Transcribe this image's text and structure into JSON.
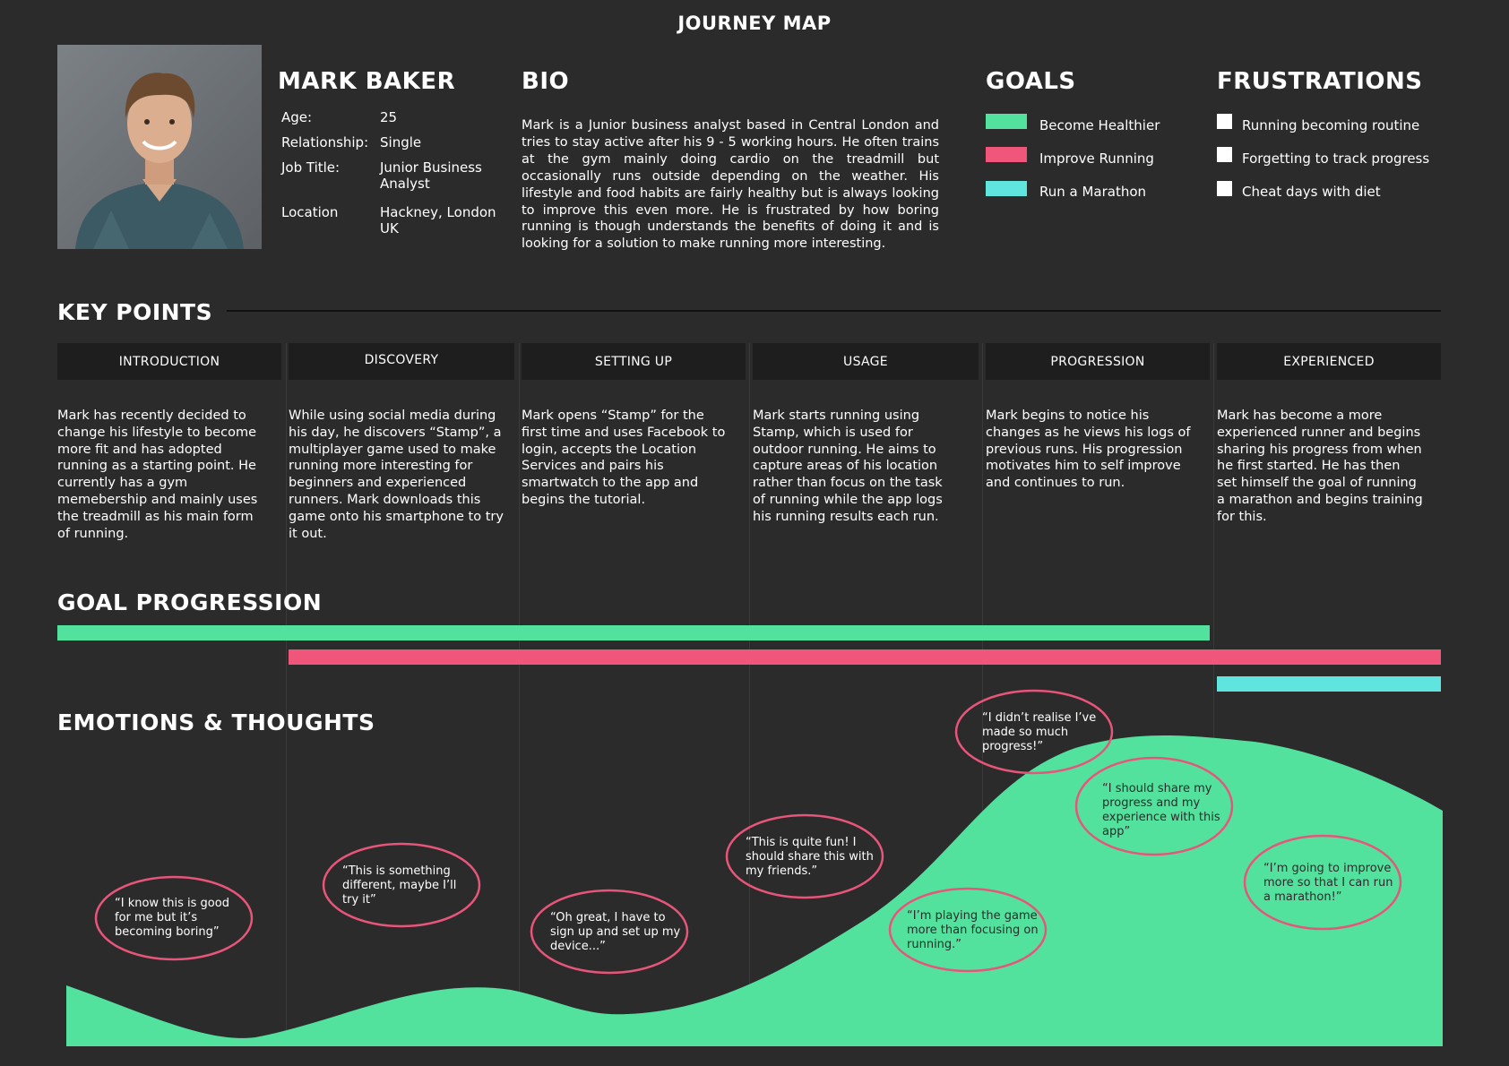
{
  "title": "JOURNEY MAP",
  "persona": {
    "name": "MARK BAKER",
    "fields": [
      {
        "label": "Age:",
        "value": "25"
      },
      {
        "label": "Relationship:",
        "value": "Single"
      },
      {
        "label": "Job Title:",
        "value": "Junior Business Analyst"
      },
      {
        "label": "Location",
        "value": "Hackney, London UK"
      }
    ]
  },
  "bio": {
    "heading": "BIO",
    "text": "Mark is a Junior business analyst based in Central London and tries to stay active after his 9 - 5 working hours. He often trains at the gym mainly doing cardio on the treadmill but occasionally runs outside depending on the weather. His lifestyle and food habits are fairly healthy but is always looking to improve this even more. He is frustrated by how boring running is though understands the benefits of doing it and is looking for a solution to make running more interesting."
  },
  "goals": {
    "heading": "GOALS",
    "items": [
      {
        "label": "Become Healthier",
        "color": "#52e29e"
      },
      {
        "label": "Improve Running",
        "color": "#f0567a"
      },
      {
        "label": "Run a Marathon",
        "color": "#5fe5dd"
      }
    ]
  },
  "frustrations": {
    "heading": "FRUSTRATIONS",
    "items": [
      {
        "label": "Running becoming routine"
      },
      {
        "label": "Forgetting to track progress"
      },
      {
        "label": "Cheat days with diet"
      }
    ]
  },
  "key_points": {
    "heading": "KEY POINTS",
    "stages": [
      {
        "label": "INTRODUCTION",
        "text": "Mark has recently decided to change his lifestyle to become more fit and has adopted running as a starting point. He currently has a gym memebership and mainly uses the treadmill as his main form of running."
      },
      {
        "label": "DISCOVERY",
        "text": "While using social media during his day, he discovers “Stamp”, a multiplayer game used to make running more interesting for beginners and experienced runners. Mark downloads this game onto his smartphone to try it out."
      },
      {
        "label": "SETTING UP",
        "text": "Mark opens “Stamp” for the first time and uses Facebook to login, accepts the Location Services and pairs his smartwatch to the app and begins the tutorial."
      },
      {
        "label": "USAGE",
        "text": "Mark starts running using Stamp, which is used for outdoor running. He aims to capture areas of his location rather than focus on the task of running while the app logs his running results each run."
      },
      {
        "label": "PROGRESSION",
        "text": "Mark begins to notice his changes as he views his logs of previous runs. His progression motivates him to self improve and continues to run."
      },
      {
        "label": "EXPERIENCED",
        "text": "Mark has become a more experienced runner and begins sharing his progress from when he first started. He has then set himself the goal of running a marathon and begins training for this."
      }
    ]
  },
  "goal_progression": {
    "heading": "GOAL PROGRESSION",
    "bars": [
      {
        "goal": "Become Healthier",
        "from_stage": "INTRODUCTION",
        "to_stage": "PROGRESSION",
        "color": "#52e29e"
      },
      {
        "goal": "Improve Running",
        "from_stage": "DISCOVERY",
        "to_stage": "EXPERIENCED",
        "color": "#f0567a"
      },
      {
        "goal": "Run a Marathon",
        "from_stage": "EXPERIENCED",
        "to_stage": "EXPERIENCED",
        "color": "#5fe5dd"
      }
    ]
  },
  "emotions": {
    "heading": "EMOTIONS & THOUGHTS",
    "curve_color": "#52e29e",
    "bubble_color": "#e8557a",
    "thoughts": [
      {
        "stage": "INTRODUCTION",
        "text": "“I know this is good for me but it’s becoming boring”"
      },
      {
        "stage": "DISCOVERY",
        "text": "“This is something different, maybe I’ll try it”"
      },
      {
        "stage": "SETTING UP",
        "text": "“Oh great, I have to sign up and set up my device...”"
      },
      {
        "stage": "USAGE",
        "text": "“This is quite fun! I should share this with my friends.”"
      },
      {
        "stage": "PROGRESSION",
        "text": "“I’m playing the game more than focusing on running.”"
      },
      {
        "stage": "PROGRESSION",
        "text": "“I didn’t realise I’ve made so much progress!”"
      },
      {
        "stage": "PROGRESSION",
        "text": "“I should share my progress and my experience with this app”"
      },
      {
        "stage": "EXPERIENCED",
        "text": "“I’m going to improve more so that I can run a marathon!”"
      }
    ]
  }
}
